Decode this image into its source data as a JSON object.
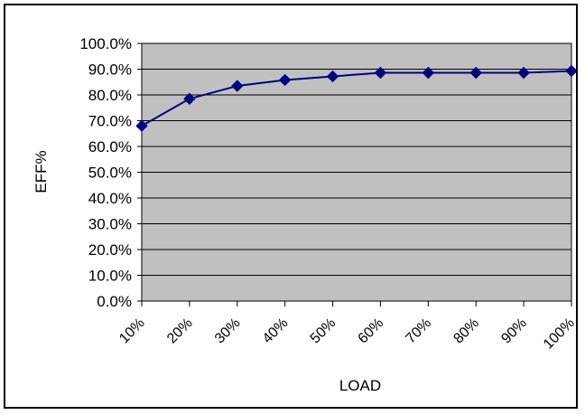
{
  "chart_data": {
    "type": "line",
    "categories": [
      "10%",
      "20%",
      "30%",
      "40%",
      "50%",
      "60%",
      "70%",
      "80%",
      "90%",
      "100%"
    ],
    "series": [
      {
        "values": [
          68.0,
          78.5,
          83.5,
          85.8,
          87.2,
          88.6,
          88.6,
          88.6,
          88.6,
          89.3
        ]
      }
    ],
    "xlabel": "LOAD",
    "ylabel": "EFF%",
    "ylim": [
      0,
      100
    ],
    "ytick_step": 10,
    "ytick_format": "%",
    "grid": true,
    "legend": "none",
    "plot_background": "#c0c0c0",
    "line_color": "#000080",
    "marker": "diamond"
  }
}
